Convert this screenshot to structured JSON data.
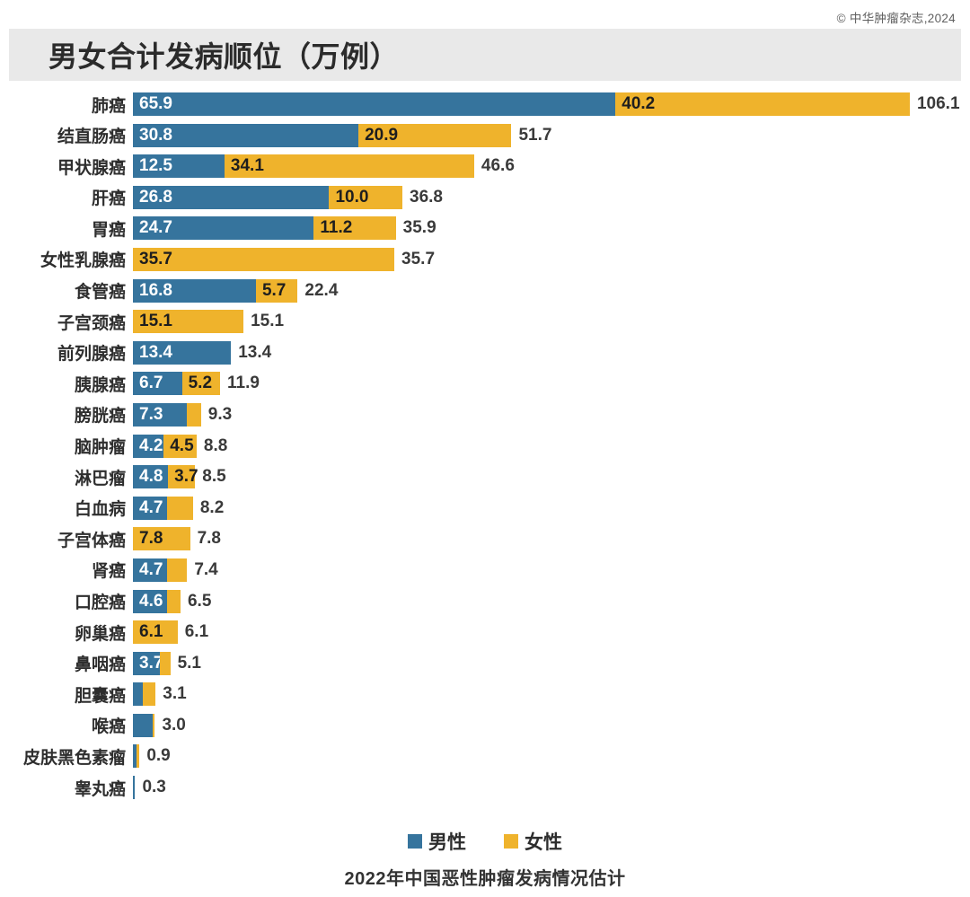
{
  "copyright": "© 中华肿瘤杂志,2024",
  "chart_data": {
    "type": "bar",
    "orientation": "horizontal",
    "stacked": true,
    "title": "男女合计发病顺位（万例）",
    "subtitle": "2022年中国恶性肿瘤发病情况估计",
    "unit": "万例",
    "legend_position": "bottom",
    "xmax": 106.1,
    "categories": [
      "肺癌",
      "结直肠癌",
      "甲状腺癌",
      "肝癌",
      "胃癌",
      "女性乳腺癌",
      "食管癌",
      "子宫颈癌",
      "前列腺癌",
      "胰腺癌",
      "膀胱癌",
      "脑肿瘤",
      "淋巴瘤",
      "白血病",
      "子宫体癌",
      "肾癌",
      "口腔癌",
      "卵巢癌",
      "鼻咽癌",
      "胆囊癌",
      "喉癌",
      "皮肤黑色素瘤",
      "睾丸癌"
    ],
    "series": [
      {
        "name": "男性",
        "color": "#36749D",
        "values": [
          65.9,
          30.8,
          12.5,
          26.8,
          24.7,
          0,
          16.8,
          0,
          13.4,
          6.7,
          7.3,
          4.2,
          4.8,
          4.7,
          0,
          4.7,
          4.6,
          0,
          3.7,
          1.4,
          2.7,
          0.5,
          0.3
        ],
        "labels": [
          "65.9",
          "30.8",
          "12.5",
          "26.8",
          "24.7",
          "",
          "16.8",
          "",
          "13.4",
          "6.7",
          "7.3",
          "4.2",
          "4.8",
          "4.7",
          "",
          "4.7",
          "4.6",
          "",
          "3.7",
          "",
          "",
          "",
          ""
        ]
      },
      {
        "name": "女性",
        "color": "#EFB32C",
        "values": [
          40.2,
          20.9,
          34.1,
          10.0,
          11.2,
          35.7,
          5.7,
          15.1,
          0,
          5.2,
          2.0,
          4.5,
          3.7,
          3.5,
          7.8,
          2.7,
          1.9,
          6.1,
          1.4,
          1.7,
          0.3,
          0.4,
          0
        ],
        "labels": [
          "40.2",
          "20.9",
          "34.1",
          "10.0",
          "11.2",
          "35.7",
          "5.7",
          "15.1",
          "",
          "5.2",
          "",
          "4.5",
          "3.7",
          "",
          "7.8",
          "",
          "",
          "6.1",
          "",
          "",
          "",
          "",
          ""
        ]
      }
    ],
    "totals": [
      106.1,
      51.7,
      46.6,
      36.8,
      35.9,
      35.7,
      22.4,
      15.1,
      13.4,
      11.9,
      9.3,
      8.8,
      8.5,
      8.2,
      7.8,
      7.4,
      6.5,
      6.1,
      5.1,
      3.1,
      3.0,
      0.9,
      0.3
    ],
    "total_labels": [
      "106.1",
      "51.7",
      "46.6",
      "36.8",
      "35.9",
      "35.7",
      "22.4",
      "15.1",
      "13.4",
      "11.9",
      "9.3",
      "8.8",
      "8.5",
      "8.2",
      "7.8",
      "7.4",
      "6.5",
      "6.1",
      "5.1",
      "3.1",
      "3.0",
      "0.9",
      "0.3"
    ]
  }
}
